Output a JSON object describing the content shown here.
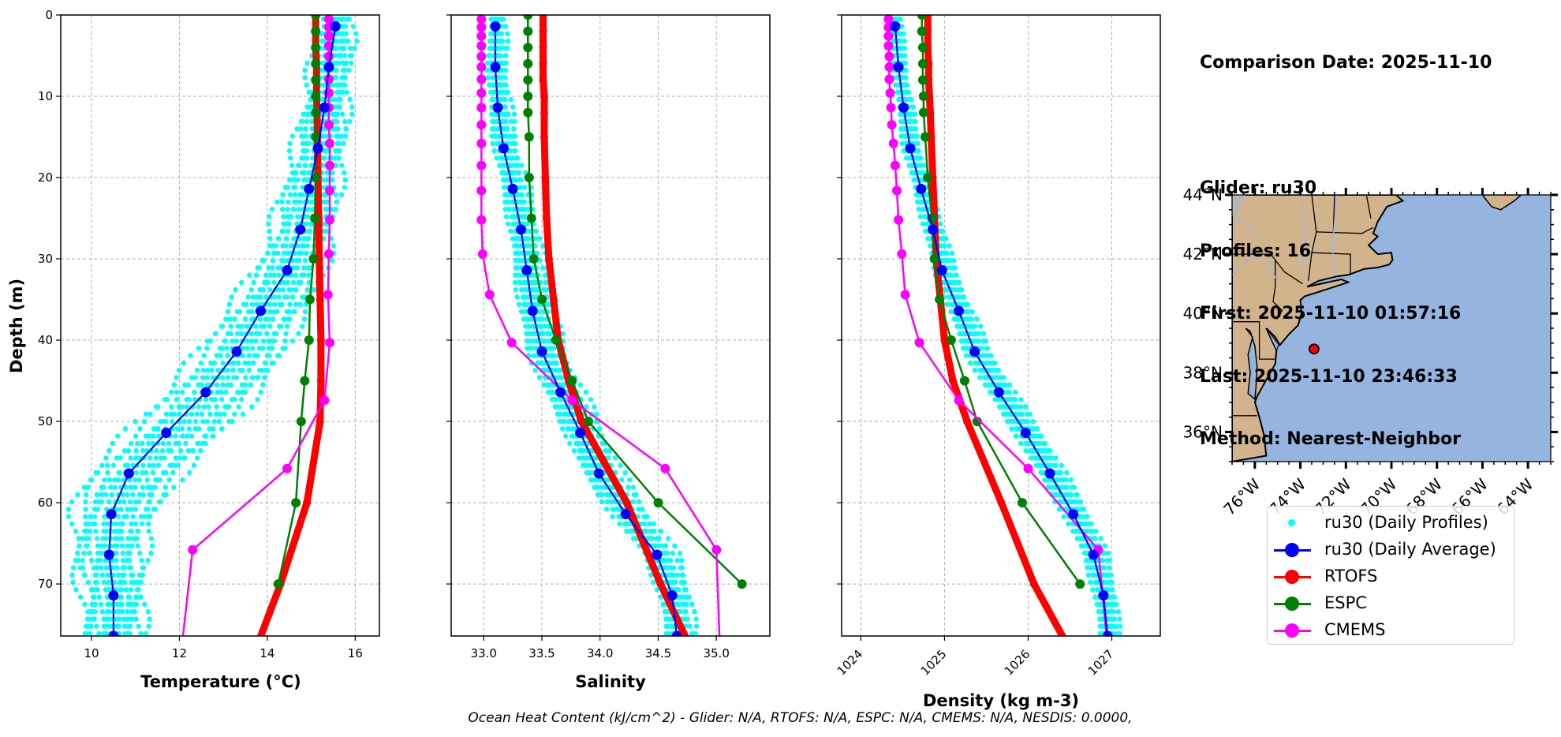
{
  "info": {
    "comparison_date": "Comparison Date: 2025-11-10",
    "glider": "Glider: ru30",
    "profiles": "Profiles: 16",
    "first": "First: 2025-11-10 01:57:16",
    "last": "Last: 2025-11-10 23:46:33",
    "method": "Method: Nearest-Neighbor"
  },
  "footer": "Ocean Heat Content (kJ/cm^2) - Glider: N/A,  RTOFS: N/A,  ESPC: N/A,  CMEMS: N/A,  NESDIS: 0.0000,",
  "colors": {
    "profiles": "#00ffff",
    "average": "#0000ff",
    "rtofs": "#ff0000",
    "espc": "#008000",
    "cmems": "#ff00ff",
    "land": "#d2b48c",
    "ocean": "#96b4e0",
    "marker": "#ff0000"
  },
  "legend": [
    {
      "label": "ru30 (Daily Profiles)",
      "series": "profiles"
    },
    {
      "label": "ru30 (Daily Average)",
      "series": "average"
    },
    {
      "label": "RTOFS",
      "series": "rtofs"
    },
    {
      "label": "ESPC",
      "series": "espc"
    },
    {
      "label": "CMEMS",
      "series": "cmems"
    }
  ],
  "chart_data": [
    {
      "type": "line",
      "title": "",
      "xlabel": "Temperature (°C)",
      "ylabel": "Depth (m)",
      "xlim": [
        9.3,
        16.55
      ],
      "ylim": [
        76.4,
        0
      ],
      "xticks": [
        10,
        12,
        14,
        16
      ],
      "yticks": [
        0,
        10,
        20,
        30,
        40,
        50,
        60,
        70
      ],
      "grid": true,
      "series": [
        {
          "name": "ru30 (Daily Average)",
          "key": "average",
          "depth": [
            1.4,
            6.4,
            11.4,
            16.4,
            21.4,
            26.4,
            31.4,
            36.4,
            41.4,
            46.4,
            51.4,
            56.4,
            61.4,
            66.4,
            71.4,
            76.4
          ],
          "values": [
            15.55,
            15.4,
            15.3,
            15.15,
            14.95,
            14.75,
            14.45,
            13.85,
            13.3,
            12.6,
            11.7,
            10.85,
            10.45,
            10.4,
            10.5,
            10.5
          ]
        },
        {
          "name": "RTOFS",
          "key": "rtofs",
          "depth": [
            0,
            2,
            4,
            6,
            8,
            10,
            12,
            15,
            20,
            25,
            30,
            35,
            40,
            45,
            50,
            60,
            70,
            80
          ],
          "values": [
            15.1,
            15.1,
            15.1,
            15.12,
            15.12,
            15.12,
            15.13,
            15.14,
            15.15,
            15.17,
            15.18,
            15.2,
            15.22,
            15.22,
            15.2,
            14.9,
            14.3,
            13.6
          ]
        },
        {
          "name": "ESPC",
          "key": "espc",
          "depth": [
            0,
            2,
            4,
            6,
            8,
            10,
            12,
            15,
            20,
            25,
            30,
            35,
            40,
            45,
            50,
            60,
            70
          ],
          "values": [
            15.1,
            15.1,
            15.1,
            15.1,
            15.1,
            15.1,
            15.1,
            15.1,
            15.1,
            15.08,
            15.05,
            14.97,
            14.95,
            14.85,
            14.77,
            14.65,
            14.25
          ]
        },
        {
          "name": "CMEMS",
          "key": "cmems",
          "depth": [
            0.5,
            1.5,
            2.6,
            3.8,
            5.1,
            6.4,
            7.9,
            9.6,
            11.4,
            13.5,
            15.8,
            18.5,
            21.6,
            25.2,
            29.4,
            34.4,
            40.3,
            47.4,
            55.8,
            65.8,
            77.9
          ],
          "values": [
            15.4,
            15.4,
            15.4,
            15.4,
            15.4,
            15.4,
            15.4,
            15.4,
            15.4,
            15.4,
            15.42,
            15.42,
            15.42,
            15.42,
            15.4,
            15.38,
            15.42,
            15.3,
            14.45,
            12.3,
            12.05
          ]
        }
      ]
    },
    {
      "type": "line",
      "title": "",
      "xlabel": "Salinity",
      "ylabel": "",
      "xlim": [
        32.72,
        35.46
      ],
      "ylim": [
        76.4,
        0
      ],
      "xticks": [
        33.0,
        33.5,
        34.0,
        34.5,
        35.0
      ],
      "xtick_labels": [
        "33.0",
        "33.5",
        "34.0",
        "34.5",
        "35.0"
      ],
      "yticks": [
        0,
        10,
        20,
        30,
        40,
        50,
        60,
        70
      ],
      "grid": true,
      "series": [
        {
          "name": "ru30 (Daily Average)",
          "key": "average",
          "depth": [
            1.4,
            6.4,
            11.4,
            16.4,
            21.4,
            26.4,
            31.4,
            36.4,
            41.4,
            46.4,
            51.4,
            56.4,
            61.4,
            66.4,
            71.4,
            76.4
          ],
          "values": [
            33.1,
            33.1,
            33.12,
            33.17,
            33.25,
            33.32,
            33.37,
            33.42,
            33.5,
            33.66,
            33.83,
            33.99,
            34.22,
            34.49,
            34.62,
            34.66
          ]
        },
        {
          "name": "RTOFS",
          "key": "rtofs",
          "depth": [
            0,
            2,
            4,
            6,
            8,
            10,
            12,
            15,
            20,
            25,
            30,
            35,
            40,
            45,
            50,
            60,
            70,
            80
          ],
          "values": [
            33.51,
            33.51,
            33.51,
            33.51,
            33.51,
            33.52,
            33.52,
            33.52,
            33.53,
            33.54,
            33.56,
            33.6,
            33.64,
            33.73,
            33.84,
            34.23,
            34.52,
            34.85
          ]
        },
        {
          "name": "ESPC",
          "key": "espc",
          "depth": [
            0,
            2,
            4,
            6,
            8,
            10,
            12,
            15,
            20,
            25,
            30,
            35,
            40,
            45,
            50,
            60,
            70
          ],
          "values": [
            33.38,
            33.38,
            33.38,
            33.38,
            33.38,
            33.38,
            33.38,
            33.39,
            33.39,
            33.41,
            33.43,
            33.5,
            33.62,
            33.76,
            33.9,
            34.5,
            35.22
          ]
        },
        {
          "name": "CMEMS",
          "key": "cmems",
          "depth": [
            0.5,
            1.5,
            2.6,
            3.8,
            5.1,
            6.4,
            7.9,
            9.6,
            11.4,
            13.5,
            15.8,
            18.5,
            21.6,
            25.2,
            29.4,
            34.4,
            40.3,
            47.4,
            55.8,
            65.8,
            77.9
          ],
          "values": [
            32.98,
            32.98,
            32.98,
            32.98,
            32.98,
            32.98,
            32.98,
            32.98,
            32.98,
            32.98,
            32.98,
            32.98,
            32.98,
            32.98,
            32.99,
            33.05,
            33.24,
            33.76,
            34.56,
            35.0,
            35.03
          ]
        }
      ]
    },
    {
      "type": "line",
      "title": "",
      "xlabel": "Density (kg m-3)",
      "ylabel": "",
      "xlim": [
        1023.77,
        1027.58
      ],
      "ylim": [
        76.4,
        0
      ],
      "xticks": [
        1024,
        1025,
        1026,
        1027
      ],
      "yticks": [
        0,
        10,
        20,
        30,
        40,
        50,
        60,
        70
      ],
      "grid": true,
      "series": [
        {
          "name": "ru30 (Daily Average)",
          "key": "average",
          "depth": [
            1.4,
            6.4,
            11.4,
            16.4,
            21.4,
            26.4,
            31.4,
            36.4,
            41.4,
            46.4,
            51.4,
            56.4,
            61.4,
            66.4,
            71.4,
            76.4
          ],
          "values": [
            1024.41,
            1024.45,
            1024.51,
            1024.59,
            1024.72,
            1024.86,
            1024.97,
            1025.17,
            1025.36,
            1025.65,
            1025.97,
            1026.26,
            1026.54,
            1026.78,
            1026.9,
            1026.95
          ]
        },
        {
          "name": "RTOFS",
          "key": "rtofs",
          "depth": [
            0,
            2,
            4,
            6,
            8,
            10,
            12,
            15,
            20,
            25,
            30,
            35,
            40,
            45,
            50,
            60,
            70,
            80
          ],
          "values": [
            1024.8,
            1024.8,
            1024.8,
            1024.81,
            1024.81,
            1024.82,
            1024.83,
            1024.84,
            1024.86,
            1024.88,
            1024.9,
            1024.95,
            1025.0,
            1025.1,
            1025.27,
            1025.68,
            1026.07,
            1026.6
          ]
        },
        {
          "name": "ESPC",
          "key": "espc",
          "depth": [
            0,
            2,
            4,
            6,
            8,
            10,
            12,
            15,
            20,
            25,
            30,
            35,
            40,
            45,
            50,
            60,
            70
          ],
          "values": [
            1024.73,
            1024.73,
            1024.74,
            1024.74,
            1024.74,
            1024.75,
            1024.75,
            1024.77,
            1024.8,
            1024.85,
            1024.88,
            1024.94,
            1025.08,
            1025.24,
            1025.39,
            1025.93,
            1026.62
          ]
        },
        {
          "name": "CMEMS",
          "key": "cmems",
          "depth": [
            0.5,
            1.5,
            2.6,
            3.8,
            5.1,
            6.4,
            7.9,
            9.6,
            11.4,
            13.5,
            15.8,
            18.5,
            21.6,
            25.2,
            29.4,
            34.4,
            40.3,
            47.4,
            55.8,
            65.8,
            77.9
          ],
          "values": [
            1024.33,
            1024.33,
            1024.33,
            1024.33,
            1024.34,
            1024.34,
            1024.34,
            1024.35,
            1024.36,
            1024.37,
            1024.39,
            1024.41,
            1024.43,
            1024.45,
            1024.49,
            1024.53,
            1024.7,
            1025.17,
            1026.0,
            1026.84,
            1026.95
          ]
        }
      ]
    }
  ],
  "profile_spread": {
    "description": "ru30 daily profiles (16) as offsets from daily average",
    "count": 16,
    "temperature_offsets": [
      -0.9,
      -0.7,
      -0.5,
      -0.35,
      -0.2,
      -0.1,
      0.0,
      0.1,
      0.2,
      0.3,
      0.45,
      0.6,
      0.75,
      0.9,
      -0.6,
      0.5
    ],
    "salinity_offsets": [
      -0.12,
      -0.09,
      -0.06,
      -0.04,
      -0.02,
      0.0,
      0.02,
      0.04,
      0.06,
      0.08,
      0.1,
      0.13,
      0.16,
      0.2,
      -0.08,
      0.05
    ],
    "density_offsets": [
      -0.12,
      -0.08,
      -0.05,
      -0.03,
      -0.01,
      0.0,
      0.02,
      0.04,
      0.06,
      0.08,
      0.1,
      0.12,
      0.15,
      0.18,
      -0.06,
      0.05
    ]
  },
  "map": {
    "lon_range": [
      -77,
      -63
    ],
    "lat_range": [
      35,
      44
    ],
    "lat_ticks": [
      {
        "v": 36,
        "label": "36°N"
      },
      {
        "v": 38,
        "label": "38°N"
      },
      {
        "v": 40,
        "label": "40°N"
      },
      {
        "v": 42,
        "label": "42°N"
      },
      {
        "v": 44,
        "label": "44°N"
      }
    ],
    "lon_ticks": [
      {
        "v": -76,
        "label": "76°W"
      },
      {
        "v": -74,
        "label": "74°W"
      },
      {
        "v": -72,
        "label": "72°W"
      },
      {
        "v": -70,
        "label": "70°W"
      },
      {
        "v": -68,
        "label": "68°W"
      },
      {
        "v": -66,
        "label": "66°W"
      },
      {
        "v": -64,
        "label": "64°W"
      }
    ],
    "glider_position": {
      "lon": -73.4,
      "lat": 38.8
    }
  }
}
